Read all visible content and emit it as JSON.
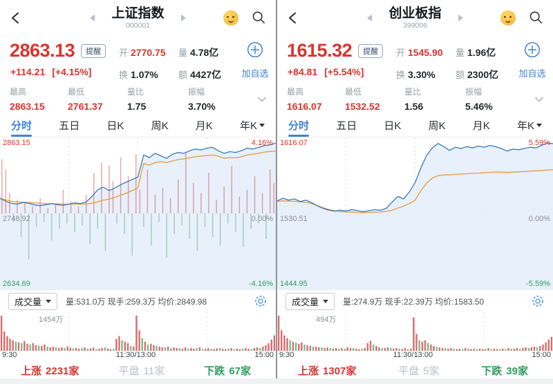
{
  "shared": {
    "alert_badge": "提醒",
    "add_watch": "加自选",
    "volume_selector": "成交量",
    "tabs": [
      {
        "label": "分时"
      },
      {
        "label": "五日"
      },
      {
        "label": "日K"
      },
      {
        "label": "周K"
      },
      {
        "label": "月K"
      },
      {
        "label": "年K"
      }
    ],
    "quote_labels": {
      "open": "开",
      "turnover": "换",
      "volume": "量",
      "amount": "额"
    },
    "stat_labels": {
      "high": "最高",
      "low": "最低",
      "volume_ratio": "量比",
      "amplitude": "振幅"
    },
    "time_labels": [
      "9:30",
      "11:30/13:00",
      "15:00"
    ],
    "updown_labels": {
      "up": "上涨",
      "flat": "平盘",
      "down": "下跌"
    }
  },
  "colors": {
    "red": "#d9342e",
    "green": "#2f9e5d",
    "blue_accent": "#3f83d6",
    "price_line": "#3a78b5",
    "avg_line": "#e99a3c",
    "area_fill": "#e4eefb",
    "bar_up": "rgba(211,82,82,0.55)",
    "bar_down": "rgba(88,168,122,0.5)",
    "vol_up": "#d96c6c",
    "vol_down": "#6fbf8f",
    "grid": "#e4e4e4",
    "zero_line": "#d8d8d8"
  },
  "panels": [
    {
      "title": "上证指数",
      "code": "000001",
      "price": "2863.13",
      "change": "+114.21",
      "change_pct": "[+4.15%]",
      "open": "2770.75",
      "turnover": "1.07%",
      "volume": "4.78亿",
      "amount": "4427亿",
      "high": "2863.15",
      "low": "2761.37",
      "volume_ratio": "1.75",
      "amplitude": "3.70%",
      "volume_info": "量:531.0万 现手:259.3万 均价:2849.98",
      "breadth": {
        "up": "2231家",
        "flat": "11家",
        "down": "67家"
      },
      "chart": {
        "y_top": "2863.15",
        "y_mid": "2748.92",
        "y_bottom": "2634.69",
        "pct_top": "4.16%",
        "pct_mid": "0.00%",
        "pct_bottom": "-4.16%",
        "pmax": 4.16,
        "volume_label": "1454万",
        "price_pct": [
          0.9,
          0.72,
          0.6,
          0.55,
          0.65,
          0.6,
          0.5,
          0.46,
          0.52,
          0.58,
          0.52,
          0.48,
          0.55,
          0.62,
          0.58,
          0.68,
          1.0,
          1.4,
          1.55,
          1.35,
          1.5,
          1.7,
          1.85,
          2.0,
          2.15,
          3.45,
          3.3,
          3.55,
          3.4,
          3.25,
          3.5,
          3.6,
          3.55,
          3.7,
          3.8,
          3.75,
          3.85,
          3.9,
          3.7,
          3.55,
          3.65,
          3.6,
          3.7,
          3.85,
          3.8,
          3.9,
          4.0,
          4.05,
          4.15
        ],
        "avg_pct": [
          0.88,
          0.8,
          0.72,
          0.68,
          0.66,
          0.64,
          0.62,
          0.6,
          0.58,
          0.57,
          0.56,
          0.55,
          0.55,
          0.55,
          0.55,
          0.56,
          0.6,
          0.68,
          0.78,
          0.85,
          0.95,
          1.08,
          1.2,
          1.35,
          1.5,
          2.95,
          2.85,
          3.0,
          3.05,
          3.0,
          3.1,
          3.18,
          3.22,
          3.28,
          3.35,
          3.38,
          3.42,
          3.45,
          3.38,
          3.25,
          3.3,
          3.28,
          3.35,
          3.45,
          3.5,
          3.55,
          3.62,
          3.66,
          3.68
        ],
        "minute_bars": [
          3.2,
          2.6,
          1.2,
          -0.5,
          0.8,
          -1.4,
          0.6,
          -2.7,
          0.4,
          -0.8,
          0.9,
          -0.5,
          0.3,
          -1.6,
          0.5,
          -0.9,
          1.4,
          -0.6,
          0.7,
          -1.1,
          0.4,
          -0.7,
          1.1,
          -1.8,
          2.4,
          -0.9,
          3.0,
          -2.2,
          2.8,
          1.9,
          -0.6,
          3.3,
          -1.2,
          2.2,
          -2.5,
          3.5,
          1.4,
          -0.8,
          2.6,
          -1.9,
          1.1,
          -0.5,
          1.5,
          -2.6,
          0.9,
          -1.2,
          2.0,
          -0.7,
          3.6,
          -1.5,
          1.8,
          -2.2,
          1.2,
          -0.8,
          2.4,
          -1.4,
          0.8,
          -1.9,
          1.6,
          -0.6,
          2.8,
          -1.1,
          1.0,
          -2.0,
          1.4,
          -0.9,
          2.2,
          -0.6,
          1.2,
          -1.5,
          2.6,
          1.8
        ],
        "volume_bars": [
          100,
          55,
          42,
          34,
          30,
          -26,
          24,
          -22,
          28,
          20,
          -18,
          22,
          16,
          -15,
          14,
          18,
          -12,
          10,
          12,
          -10,
          8,
          10,
          -8,
          12,
          9,
          -7,
          8,
          6,
          -8,
          10,
          -6,
          7,
          9,
          -5,
          6,
          8,
          -10,
          7,
          5,
          -6,
          34,
          42,
          -30,
          26,
          22,
          -14,
          12,
          100,
          58,
          -36,
          26,
          -18,
          20,
          16,
          -14,
          12,
          10,
          -10,
          12,
          -8,
          10,
          8,
          -8,
          6,
          10,
          -6,
          8,
          6,
          -8,
          10,
          -5,
          6,
          8,
          -6,
          5,
          7,
          -8,
          6,
          5,
          -6,
          8,
          -5,
          6,
          5,
          -6,
          8,
          6,
          -5,
          8,
          10,
          -8,
          12,
          16,
          22,
          32,
          44
        ]
      }
    },
    {
      "title": "创业板指",
      "code": "399006",
      "price": "1615.32",
      "change": "+84.81",
      "change_pct": "[+5.54%]",
      "open": "1545.90",
      "turnover": "3.30%",
      "volume": "1.96亿",
      "amount": "2300亿",
      "high": "1616.07",
      "low": "1532.52",
      "volume_ratio": "1.56",
      "amplitude": "5.46%",
      "volume_info": "量:274.9万 现手:22.39万 均价:1583.50",
      "breadth": {
        "up": "1307家",
        "flat": "5家",
        "down": "39家"
      },
      "chart": {
        "y_top": "1616.07",
        "y_mid": "1530.51",
        "y_bottom": "1444.95",
        "pct_top": "5.59%",
        "pct_mid": "0.00%",
        "pct_bottom": "-5.59%",
        "pmax": 5.59,
        "volume_label": "494万",
        "price_pct": [
          1.0,
          1.2,
          1.05,
          1.15,
          0.95,
          1.05,
          0.85,
          0.6,
          0.4,
          0.25,
          0.18,
          0.25,
          0.2,
          0.3,
          0.22,
          0.13,
          0.22,
          0.3,
          0.25,
          0.4,
          0.9,
          1.35,
          1.15,
          1.7,
          2.45,
          3.6,
          4.6,
          5.2,
          5.55,
          5.3,
          5.0,
          5.25,
          5.15,
          5.3,
          5.2,
          5.35,
          5.25,
          5.4,
          5.3,
          5.15,
          4.95,
          5.1,
          5.05,
          5.15,
          5.25,
          5.2,
          5.4,
          5.58,
          5.54
        ],
        "avg_pct": [
          0.95,
          1.0,
          0.98,
          0.96,
          0.92,
          0.88,
          0.78,
          0.62,
          0.45,
          0.32,
          0.22,
          0.15,
          0.12,
          0.1,
          0.08,
          0.06,
          0.08,
          0.1,
          0.12,
          0.16,
          0.25,
          0.42,
          0.58,
          0.78,
          1.05,
          1.8,
          2.4,
          2.8,
          3.0,
          3.05,
          3.05,
          3.1,
          3.12,
          3.15,
          3.18,
          3.2,
          3.22,
          3.25,
          3.28,
          3.28,
          3.25,
          3.28,
          3.3,
          3.32,
          3.35,
          3.38,
          3.4,
          3.44,
          3.46
        ],
        "minute_bars": [],
        "volume_bars": [
          100,
          58,
          44,
          36,
          -30,
          26,
          -24,
          20,
          24,
          -18,
          16,
          14,
          -12,
          12,
          10,
          -10,
          8,
          10,
          -8,
          6,
          8,
          -6,
          8,
          -6,
          10,
          8,
          -8,
          6,
          5,
          -6,
          8,
          22,
          28,
          -18,
          14,
          10,
          -8,
          8,
          10,
          -8,
          6,
          8,
          -6,
          5,
          8,
          -5,
          6,
          95,
          48,
          -30,
          26,
          30,
          -22,
          18,
          14,
          -12,
          10,
          8,
          -8,
          6,
          8,
          -6,
          5,
          6,
          -5,
          8,
          -6,
          5,
          6,
          -5,
          6,
          5,
          -6,
          8,
          -5,
          6,
          5,
          -5,
          6,
          -5,
          8,
          -6,
          6,
          8,
          -6,
          8,
          10,
          -8,
          10,
          12,
          -10,
          14,
          18,
          24,
          32,
          40
        ]
      }
    }
  ]
}
